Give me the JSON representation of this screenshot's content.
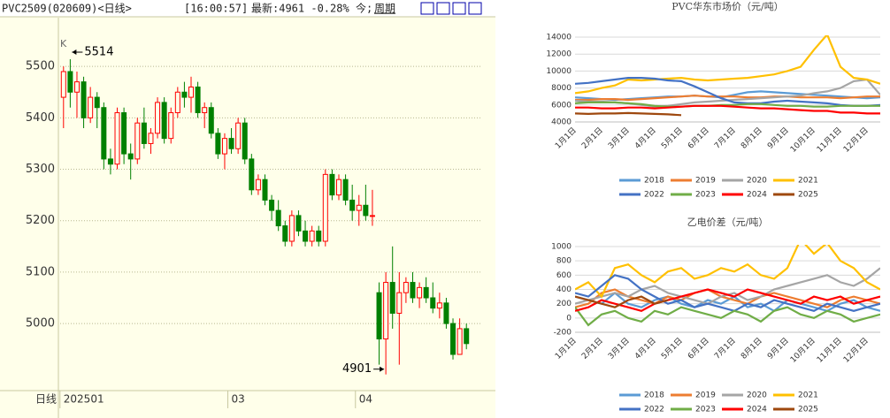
{
  "chart_data": [
    {
      "type": "candlestick",
      "title": "PVC2509(020609)<日线>",
      "clock": "[16:00:57]",
      "quote": "最新:4961 -0.28%",
      "today": "今;",
      "period": "周期",
      "corner": "K",
      "bottom_label": "日线",
      "categories": [
        "202501",
        null,
        null,
        null,
        null,
        null,
        null,
        null,
        null,
        null,
        null,
        null,
        null,
        null,
        null,
        null,
        null,
        null,
        null,
        null,
        null,
        null,
        null,
        null,
        null,
        "03",
        null,
        null,
        null,
        null,
        null,
        null,
        null,
        null,
        null,
        null,
        null,
        null,
        null,
        null,
        null,
        null,
        null,
        null,
        "04",
        null,
        null,
        null,
        null,
        null,
        null,
        null,
        null,
        null,
        null,
        null,
        null,
        null,
        null,
        null,
        null
      ],
      "open": [
        5440,
        5490,
        5450,
        5470,
        5400,
        5440,
        5420,
        5320,
        5310,
        5410,
        5330,
        5320,
        5390,
        5350,
        5370,
        5430,
        5360,
        5410,
        5450,
        5440,
        5460,
        5410,
        5420,
        5370,
        5330,
        5360,
        5340,
        5390,
        5320,
        5260,
        5280,
        5240,
        5220,
        5190,
        5160,
        5210,
        5180,
        5160,
        5180,
        5160,
        5290,
        5250,
        5280,
        5240,
        5220,
        5230,
        5210,
        5060,
        4970,
        5080,
        5020,
        5060,
        5080,
        5050,
        5070,
        5050,
        5030,
        5040,
        5000,
        4940,
        4990
      ],
      "high": [
        5500,
        5514,
        5490,
        5480,
        5460,
        5450,
        5430,
        5340,
        5420,
        5420,
        5350,
        5400,
        5420,
        5380,
        5440,
        5440,
        5420,
        5460,
        5470,
        5480,
        5470,
        5430,
        5430,
        5380,
        5370,
        5380,
        5400,
        5400,
        5330,
        5290,
        5290,
        5250,
        5240,
        5200,
        5220,
        5220,
        5200,
        5190,
        5190,
        5300,
        5300,
        5290,
        5290,
        5270,
        5250,
        5270,
        5260,
        5080,
        5100,
        5150,
        5100,
        5090,
        5100,
        5080,
        5090,
        5080,
        5060,
        5050,
        5010,
        5010,
        5000
      ],
      "low": [
        5380,
        5420,
        5400,
        5380,
        5390,
        5380,
        5300,
        5290,
        5300,
        5310,
        5280,
        5310,
        5340,
        5330,
        5360,
        5350,
        5350,
        5400,
        5420,
        5410,
        5400,
        5380,
        5360,
        5320,
        5300,
        5330,
        5330,
        5310,
        5250,
        5250,
        5230,
        5200,
        5180,
        5150,
        5150,
        5170,
        5150,
        5150,
        5150,
        5150,
        5240,
        5240,
        5230,
        5200,
        5190,
        5200,
        5190,
        4920,
        4901,
        4990,
        4920,
        5040,
        5040,
        5030,
        5040,
        5020,
        5010,
        4990,
        4930,
        4940,
        4950
      ],
      "close": [
        5490,
        5450,
        5470,
        5400,
        5440,
        5420,
        5320,
        5310,
        5410,
        5330,
        5320,
        5390,
        5350,
        5370,
        5430,
        5360,
        5410,
        5450,
        5440,
        5460,
        5410,
        5420,
        5370,
        5330,
        5360,
        5340,
        5390,
        5320,
        5260,
        5280,
        5240,
        5220,
        5190,
        5160,
        5210,
        5180,
        5160,
        5180,
        5160,
        5290,
        5250,
        5280,
        5240,
        5220,
        5230,
        5210,
        5210,
        4970,
        5080,
        5020,
        5060,
        5080,
        5050,
        5070,
        5050,
        5030,
        5040,
        5000,
        4940,
        4990,
        4961
      ],
      "ylim": [
        4873,
        5557
      ],
      "yticks": [
        5000,
        5100,
        5200,
        5300,
        5400,
        5500
      ],
      "grid": true,
      "up_color": "#ff0000",
      "down_color": "#008000"
    },
    {
      "type": "line",
      "title": "PVC华东市场价（元/吨）",
      "categories": [
        "1月1日",
        null,
        "2月1日",
        null,
        "3月1日",
        null,
        "4月1日",
        null,
        "5月1日",
        null,
        "6月1日",
        null,
        "7月1日",
        null,
        "8月1日",
        null,
        "9月1日",
        null,
        "10月1日",
        null,
        "11月1日",
        null,
        "12月1日",
        null
      ],
      "ylim": [
        4000,
        14000
      ],
      "yticks": [
        4000,
        6000,
        8000,
        10000,
        12000,
        14000
      ],
      "grid": true,
      "series": [
        {
          "name": "2018",
          "color": "#5b9bd5",
          "values": [
            6900,
            6800,
            6700,
            6600,
            6700,
            6800,
            6900,
            7000,
            7000,
            7100,
            7000,
            6900,
            7200,
            7500,
            7600,
            7500,
            7400,
            7300,
            7200,
            7100,
            7000,
            6900,
            6800,
            6900
          ]
        },
        {
          "name": "2019",
          "color": "#ed7d31",
          "values": [
            6600,
            6600,
            6700,
            6700,
            6600,
            6700,
            6800,
            6900,
            7000,
            7100,
            7000,
            7000,
            7000,
            6900,
            6900,
            7000,
            7000,
            6900,
            6900,
            6900,
            6800,
            6900,
            7000,
            7000
          ]
        },
        {
          "name": "2020",
          "color": "#a5a5a5",
          "values": [
            6500,
            6400,
            6400,
            6300,
            6200,
            6000,
            5800,
            5900,
            6100,
            6300,
            6400,
            6500,
            6600,
            6700,
            6800,
            6900,
            7000,
            7100,
            7400,
            7600,
            8000,
            8800,
            9000,
            7200
          ]
        },
        {
          "name": "2021",
          "color": "#ffc000",
          "values": [
            7400,
            7600,
            8000,
            8300,
            9000,
            8900,
            9000,
            9100,
            9200,
            9000,
            8900,
            9000,
            9100,
            9200,
            9400,
            9600,
            10000,
            10500,
            12500,
            14300,
            10500,
            9200,
            9000,
            8500
          ]
        },
        {
          "name": "2022",
          "color": "#4472c4",
          "values": [
            8500,
            8600,
            8800,
            9000,
            9200,
            9200,
            9100,
            8900,
            8800,
            8200,
            7500,
            6800,
            6300,
            6200,
            6200,
            6400,
            6500,
            6400,
            6300,
            6200,
            6000,
            5900,
            5900,
            6000
          ]
        },
        {
          "name": "2023",
          "color": "#70ad47",
          "values": [
            6200,
            6300,
            6300,
            6300,
            6200,
            6100,
            5900,
            5800,
            5800,
            5900,
            5900,
            6000,
            6000,
            6100,
            6100,
            6000,
            5900,
            5900,
            5800,
            5800,
            5900,
            5900,
            5900,
            5900
          ]
        },
        {
          "name": "2024",
          "color": "#ff0000",
          "values": [
            5700,
            5700,
            5600,
            5600,
            5700,
            5700,
            5600,
            5700,
            5800,
            5900,
            5900,
            5900,
            5800,
            5700,
            5600,
            5600,
            5500,
            5400,
            5300,
            5300,
            5100,
            5100,
            5000,
            5000
          ]
        },
        {
          "name": "2025",
          "color": "#9e480e",
          "values": [
            5000,
            4950,
            5000,
            5000,
            5050,
            5000,
            4950,
            4900,
            4800,
            null,
            null,
            null,
            null,
            null,
            null,
            null,
            null,
            null,
            null,
            null,
            null,
            null,
            null,
            null
          ]
        }
      ]
    },
    {
      "type": "line",
      "title": "乙电价差（元/吨）",
      "categories": [
        "1月1日",
        null,
        "2月1日",
        null,
        "3月1日",
        null,
        "4月1日",
        null,
        "5月1日",
        null,
        "6月1日",
        null,
        "7月1日",
        null,
        "8月1日",
        null,
        "9月1日",
        null,
        "10月1日",
        null,
        "11月1日",
        null,
        "12月1日",
        null
      ],
      "ylim": [
        -200,
        1000
      ],
      "yticks": [
        -200,
        0,
        200,
        400,
        600,
        800,
        1000
      ],
      "grid": true,
      "series": [
        {
          "name": "2018",
          "color": "#5b9bd5",
          "values": [
            300,
            250,
            200,
            350,
            200,
            150,
            250,
            300,
            200,
            150,
            250,
            200,
            300,
            150,
            200,
            100,
            250,
            200,
            150,
            100,
            200,
            250,
            150,
            100
          ]
        },
        {
          "name": "2019",
          "color": "#ed7d31",
          "values": [
            150,
            200,
            350,
            400,
            300,
            250,
            200,
            300,
            250,
            350,
            400,
            300,
            250,
            200,
            300,
            350,
            300,
            250,
            200,
            150,
            250,
            300,
            250,
            200
          ]
        },
        {
          "name": "2020",
          "color": "#a5a5a5",
          "values": [
            200,
            250,
            300,
            350,
            300,
            400,
            450,
            350,
            300,
            250,
            200,
            300,
            350,
            250,
            300,
            400,
            450,
            500,
            550,
            600,
            500,
            450,
            550,
            700
          ]
        },
        {
          "name": "2021",
          "color": "#ffc000",
          "values": [
            400,
            500,
            300,
            700,
            750,
            600,
            500,
            650,
            700,
            550,
            600,
            700,
            650,
            750,
            600,
            550,
            700,
            1100,
            900,
            1050,
            800,
            700,
            500,
            400
          ]
        },
        {
          "name": "2022",
          "color": "#4472c4",
          "values": [
            350,
            300,
            450,
            600,
            550,
            400,
            300,
            200,
            250,
            150,
            200,
            150,
            100,
            200,
            150,
            250,
            200,
            150,
            100,
            200,
            150,
            100,
            150,
            200
          ]
        },
        {
          "name": "2023",
          "color": "#70ad47",
          "values": [
            150,
            -100,
            50,
            100,
            0,
            -50,
            100,
            50,
            150,
            100,
            50,
            0,
            100,
            50,
            -50,
            100,
            150,
            50,
            0,
            100,
            50,
            -50,
            0,
            50
          ]
        },
        {
          "name": "2024",
          "color": "#ff0000",
          "values": [
            100,
            150,
            250,
            200,
            150,
            100,
            200,
            250,
            300,
            350,
            400,
            350,
            300,
            400,
            350,
            300,
            250,
            200,
            300,
            250,
            300,
            200,
            250,
            300
          ]
        },
        {
          "name": "2025",
          "color": "#9e480e",
          "values": [
            300,
            250,
            200,
            150,
            250,
            300,
            200,
            250,
            null,
            null,
            null,
            null,
            null,
            null,
            null,
            null,
            null,
            null,
            null,
            null,
            null,
            null,
            null,
            null
          ]
        }
      ]
    }
  ]
}
